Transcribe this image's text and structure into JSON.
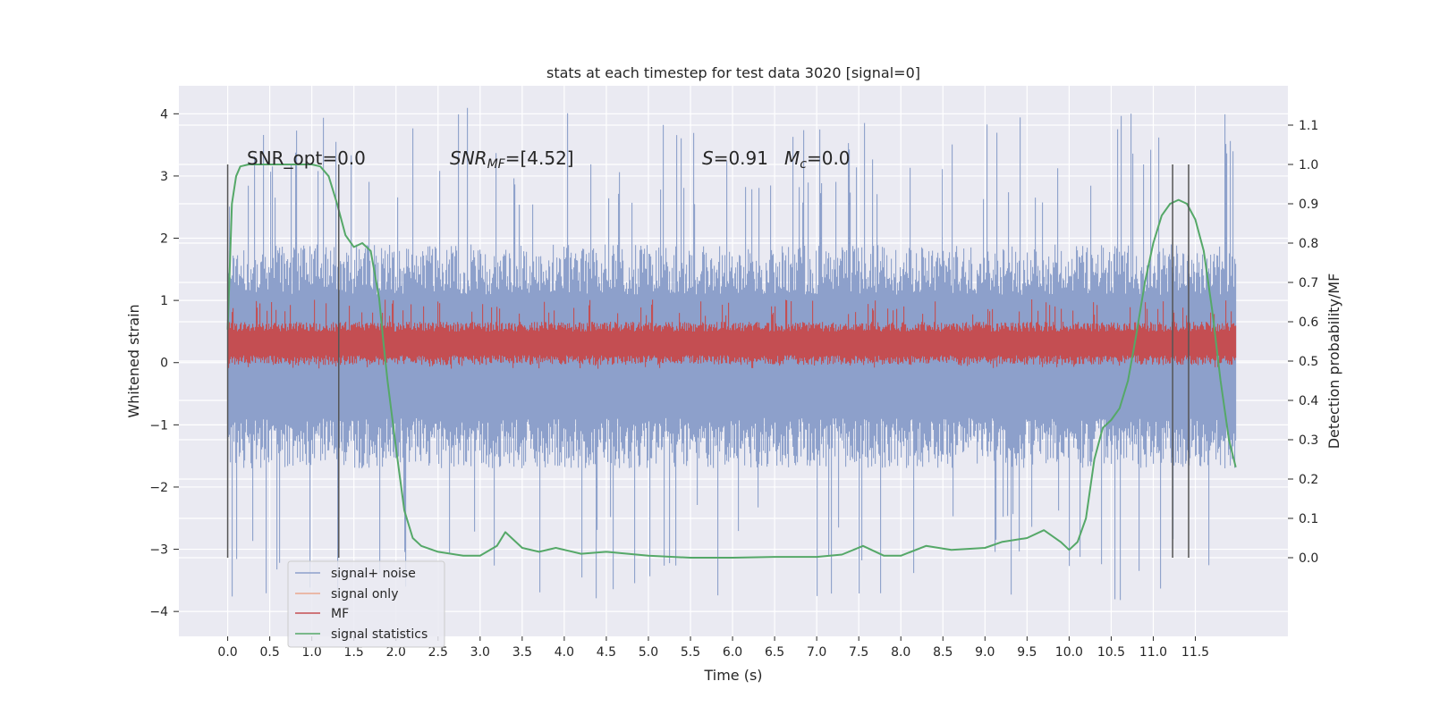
{
  "chart_data": {
    "type": "line",
    "title": "stats at each timestep for test data 3020 [signal=0]",
    "xlabel": "Time (s)",
    "ylabel": "Whitened strain",
    "y2label": "Detection probability/MF",
    "xlim": [
      -0.58,
      12.6
    ],
    "ylim": [
      -4.4,
      4.45
    ],
    "y2lim": [
      -0.2,
      1.2
    ],
    "xticks": [
      "0.0",
      "0.5",
      "1.0",
      "1.5",
      "2.0",
      "2.5",
      "3.0",
      "3.5",
      "4.0",
      "4.5",
      "5.0",
      "5.5",
      "6.0",
      "6.5",
      "7.0",
      "7.5",
      "8.0",
      "8.5",
      "9.0",
      "9.5",
      "10.0",
      "10.5",
      "11.0",
      "11.5"
    ],
    "yticks": [
      "−4",
      "−3",
      "−2",
      "−1",
      "0",
      "1",
      "2",
      "3",
      "4"
    ],
    "y2ticks": [
      "0.0",
      "0.1",
      "0.2",
      "0.3",
      "0.4",
      "0.5",
      "0.6",
      "0.7",
      "0.8",
      "0.9",
      "1.0",
      "1.1"
    ],
    "grid": true,
    "legend_position": "lower-left",
    "annotations": {
      "snr_opt": "SNR_opt=0.0",
      "snr_mf_name": "SNR",
      "snr_mf_sub": "MF",
      "snr_mf_value": "=[4.52]",
      "s_name": "S",
      "s_value": "=0.91",
      "mc_name": "M",
      "mc_sub": "c",
      "mc_value": "=0.0"
    },
    "vertical_lines_x": [
      0.0,
      1.32,
      11.23,
      11.42
    ],
    "series": [
      {
        "name": "signal+ noise",
        "color": "#8da0cb",
        "axis": "left",
        "envelope": true,
        "x_range": [
          0.0,
          11.98
        ],
        "typical_range": [
          -1.7,
          1.9
        ],
        "extreme_range": [
          -3.85,
          4.1
        ]
      },
      {
        "name": "signal only",
        "color": "#e9a88f",
        "axis": "left",
        "values": []
      },
      {
        "name": "MF",
        "color": "#c44e52",
        "axis": "right",
        "envelope": true,
        "x_range": [
          0.0,
          11.98
        ],
        "typical_range": [
          0.49,
          0.6
        ],
        "extreme_range": [
          0.48,
          0.66
        ]
      },
      {
        "name": "signal statistics",
        "color": "#55a868",
        "axis": "right",
        "x": [
          0.0,
          0.05,
          0.1,
          0.15,
          0.25,
          0.5,
          0.8,
          1.0,
          1.1,
          1.2,
          1.3,
          1.4,
          1.5,
          1.6,
          1.7,
          1.8,
          1.85,
          1.9,
          2.0,
          2.1,
          2.2,
          2.3,
          2.5,
          2.8,
          3.0,
          3.2,
          3.3,
          3.5,
          3.7,
          3.9,
          4.2,
          4.5,
          5.0,
          5.5,
          6.0,
          6.5,
          7.0,
          7.3,
          7.55,
          7.8,
          8.0,
          8.3,
          8.6,
          9.0,
          9.2,
          9.5,
          9.7,
          9.9,
          10.0,
          10.1,
          10.2,
          10.3,
          10.4,
          10.5,
          10.6,
          10.7,
          10.8,
          10.9,
          11.0,
          11.1,
          11.2,
          11.3,
          11.4,
          11.5,
          11.6,
          11.7,
          11.8,
          11.9,
          11.98
        ],
        "values": [
          0.58,
          0.9,
          0.97,
          0.995,
          1.0,
          1.0,
          1.0,
          1.0,
          0.995,
          0.97,
          0.9,
          0.82,
          0.79,
          0.8,
          0.78,
          0.66,
          0.55,
          0.45,
          0.28,
          0.12,
          0.05,
          0.03,
          0.015,
          0.005,
          0.005,
          0.03,
          0.065,
          0.025,
          0.015,
          0.025,
          0.01,
          0.015,
          0.005,
          0.0,
          0.0,
          0.002,
          0.002,
          0.008,
          0.03,
          0.005,
          0.005,
          0.03,
          0.02,
          0.025,
          0.04,
          0.05,
          0.07,
          0.04,
          0.02,
          0.04,
          0.1,
          0.25,
          0.33,
          0.35,
          0.38,
          0.45,
          0.57,
          0.7,
          0.8,
          0.87,
          0.9,
          0.91,
          0.9,
          0.86,
          0.78,
          0.63,
          0.45,
          0.3,
          0.23
        ]
      }
    ]
  }
}
